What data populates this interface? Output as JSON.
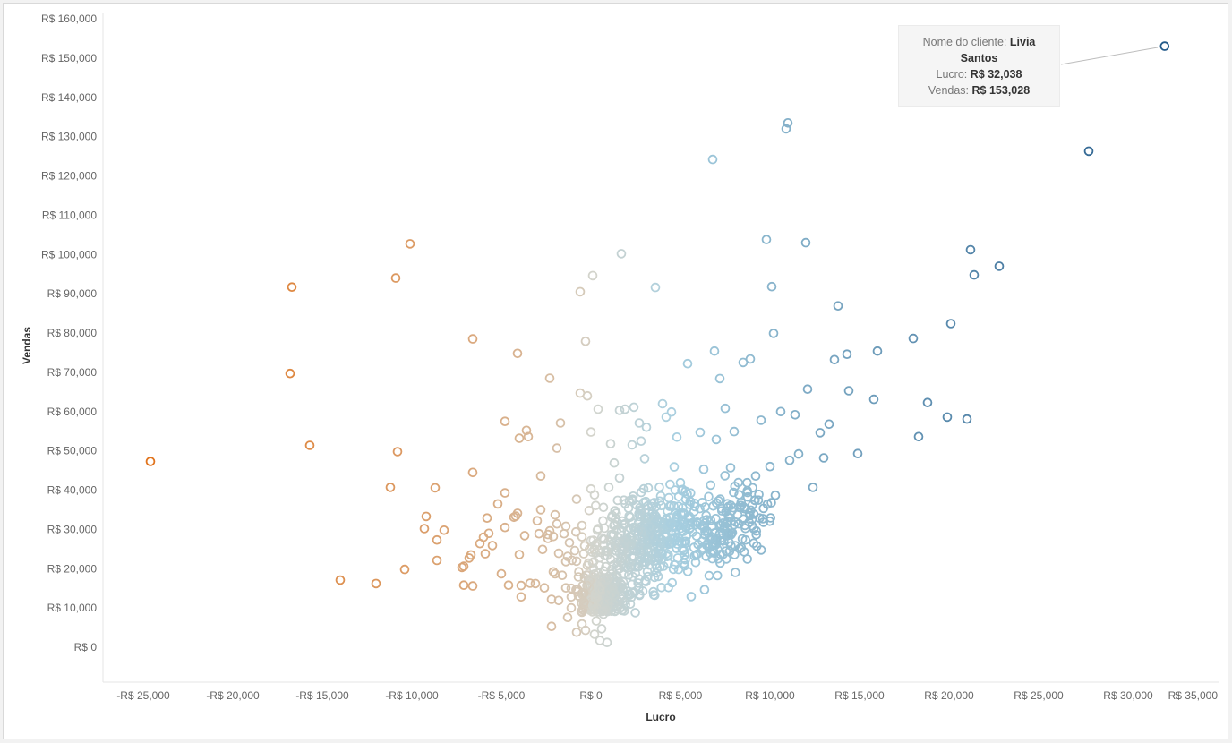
{
  "chart_data": {
    "type": "scatter",
    "xlabel": "Lucro",
    "ylabel": "Vendas",
    "xlim": [
      -27000,
      34800
    ],
    "ylim": [
      -8000,
      162000
    ],
    "x_ticks": [
      -25000,
      -20000,
      -15000,
      -10000,
      -5000,
      0,
      5000,
      10000,
      15000,
      20000,
      25000,
      30000,
      35000
    ],
    "x_tick_labels": [
      "-R$ 25,000",
      "-R$ 20,000",
      "-R$ 15,000",
      "-R$ 10,000",
      "-R$ 5,000",
      "R$ 0",
      "R$ 5,000",
      "R$ 10,000",
      "R$ 15,000",
      "R$ 20,000",
      "R$ 25,000",
      "R$ 30,000",
      "R$ 35,000"
    ],
    "y_ticks": [
      0,
      10000,
      20000,
      30000,
      40000,
      50000,
      60000,
      70000,
      80000,
      90000,
      100000,
      110000,
      120000,
      130000,
      140000,
      150000,
      160000
    ],
    "y_tick_labels": [
      "R$ 0",
      "R$ 10,000",
      "R$ 20,000",
      "R$ 30,000",
      "R$ 40,000",
      "R$ 50,000",
      "R$ 60,000",
      "R$ 70,000",
      "R$ 80,000",
      "R$ 90,000",
      "R$ 100,000",
      "R$ 110,000",
      "R$ 120,000",
      "R$ 130,000",
      "R$ 140,000",
      "R$ 150,000",
      "R$ 160,000"
    ],
    "color_encoding": {
      "field": "Lucro",
      "negative_color": "#e1731c",
      "neutral_color": "#d4d4cc",
      "positive_color": "#a7cfe0",
      "max_color": "#245b8a"
    },
    "marker": "hollow-circle",
    "grid": false,
    "points": [
      [
        -24600,
        47300
      ],
      [
        -16700,
        91700
      ],
      [
        -16800,
        69700
      ],
      [
        -15700,
        51400
      ],
      [
        -14000,
        17100
      ],
      [
        -12000,
        16200
      ],
      [
        -10100,
        102700
      ],
      [
        -10900,
        94000
      ],
      [
        -10800,
        49800
      ],
      [
        -11200,
        40700
      ],
      [
        -10400,
        19800
      ],
      [
        -9200,
        33300
      ],
      [
        -9300,
        30200
      ],
      [
        -8700,
        40600
      ],
      [
        -8600,
        27300
      ],
      [
        -8600,
        22100
      ],
      [
        -8200,
        29800
      ],
      [
        -7200,
        20300
      ],
      [
        -7100,
        20600
      ],
      [
        -7100,
        15800
      ],
      [
        -6800,
        22700
      ],
      [
        -6700,
        23500
      ],
      [
        -6600,
        15600
      ],
      [
        -6600,
        78500
      ],
      [
        -6600,
        44500
      ],
      [
        -6200,
        26400
      ],
      [
        -6000,
        28000
      ],
      [
        -5900,
        23800
      ],
      [
        -5800,
        32900
      ],
      [
        -5700,
        29000
      ],
      [
        -5500,
        25900
      ],
      [
        -5200,
        36500
      ],
      [
        -5000,
        18700
      ],
      [
        -4800,
        30500
      ],
      [
        -4800,
        57500
      ],
      [
        -4800,
        39300
      ],
      [
        -4600,
        15800
      ],
      [
        -4300,
        33100
      ],
      [
        -4200,
        33400
      ],
      [
        -4100,
        34100
      ],
      [
        -4100,
        74800
      ],
      [
        -4000,
        53200
      ],
      [
        -4000,
        23600
      ],
      [
        -3900,
        12800
      ],
      [
        -3900,
        15700
      ],
      [
        -3700,
        28400
      ],
      [
        -3600,
        55200
      ],
      [
        -3500,
        53600
      ],
      [
        -3400,
        16300
      ],
      [
        -3100,
        16200
      ],
      [
        -3000,
        32200
      ],
      [
        -2900,
        28900
      ],
      [
        -2800,
        43600
      ],
      [
        -2800,
        35000
      ],
      [
        -2700,
        24900
      ],
      [
        -2600,
        15100
      ],
      [
        -2400,
        28700
      ],
      [
        -2400,
        27700
      ],
      [
        -2300,
        29600
      ],
      [
        -2300,
        68500
      ],
      [
        -2200,
        5300
      ],
      [
        -2200,
        12200
      ],
      [
        -2100,
        19200
      ],
      [
        -2100,
        28200
      ],
      [
        -2000,
        18700
      ],
      [
        -2000,
        33700
      ],
      [
        -1900,
        50700
      ],
      [
        -1900,
        31400
      ],
      [
        -1800,
        23900
      ],
      [
        -1800,
        11900
      ],
      [
        -1700,
        57100
      ],
      [
        -1600,
        18300
      ],
      [
        -1500,
        28900
      ],
      [
        -1400,
        30800
      ],
      [
        -1400,
        21800
      ],
      [
        -1400,
        15100
      ],
      [
        -1300,
        7600
      ],
      [
        -1300,
        23100
      ],
      [
        -1200,
        26600
      ],
      [
        -1100,
        10000
      ],
      [
        -1100,
        12800
      ],
      [
        -1100,
        15000
      ],
      [
        -900,
        24600
      ],
      [
        -800,
        21900
      ],
      [
        -800,
        3800
      ],
      [
        -800,
        37700
      ],
      [
        -700,
        17900
      ],
      [
        -700,
        13100
      ],
      [
        -600,
        90500
      ],
      [
        -600,
        64700
      ],
      [
        -500,
        31000
      ],
      [
        -500,
        28100
      ],
      [
        -500,
        5900
      ],
      [
        -500,
        8900
      ],
      [
        -400,
        23800
      ],
      [
        -300,
        77900
      ],
      [
        -300,
        4300
      ],
      [
        -200,
        64000
      ],
      [
        -200,
        12300
      ],
      [
        -200,
        20800
      ],
      [
        -100,
        14200
      ],
      [
        -100,
        34800
      ],
      [
        0,
        9700
      ],
      [
        0,
        54800
      ],
      [
        0,
        40300
      ],
      [
        100,
        21500
      ],
      [
        100,
        11300
      ],
      [
        100,
        16900
      ],
      [
        100,
        94600
      ],
      [
        200,
        3300
      ],
      [
        200,
        38800
      ],
      [
        200,
        24700
      ],
      [
        300,
        6700
      ],
      [
        400,
        60600
      ],
      [
        400,
        18900
      ],
      [
        400,
        30200
      ],
      [
        500,
        1700
      ],
      [
        600,
        4700
      ],
      [
        700,
        8400
      ],
      [
        700,
        35600
      ],
      [
        700,
        26000
      ],
      [
        900,
        1200
      ],
      [
        1000,
        40700
      ],
      [
        1100,
        51800
      ],
      [
        1200,
        12700
      ],
      [
        1200,
        33500
      ],
      [
        1300,
        46900
      ],
      [
        1400,
        24500
      ],
      [
        1600,
        60300
      ],
      [
        1600,
        43100
      ],
      [
        1700,
        100200
      ],
      [
        1700,
        29700
      ],
      [
        1800,
        16600
      ],
      [
        1900,
        60600
      ],
      [
        2100,
        35400
      ],
      [
        2200,
        11000
      ],
      [
        2300,
        51500
      ],
      [
        2400,
        61100
      ],
      [
        2500,
        20400
      ],
      [
        2600,
        25900
      ],
      [
        2700,
        57100
      ],
      [
        2800,
        52500
      ],
      [
        2900,
        14300
      ],
      [
        3000,
        48000
      ],
      [
        3100,
        56000
      ],
      [
        3300,
        31200
      ],
      [
        3400,
        22600
      ],
      [
        3600,
        91600
      ],
      [
        3800,
        23900
      ],
      [
        3900,
        38500
      ],
      [
        4000,
        62000
      ],
      [
        4200,
        58600
      ],
      [
        4300,
        27000
      ],
      [
        4500,
        59900
      ],
      [
        4800,
        53500
      ],
      [
        4800,
        33100
      ],
      [
        5000,
        41900
      ],
      [
        5200,
        26900
      ],
      [
        5400,
        72200
      ],
      [
        5600,
        12900
      ],
      [
        5800,
        35800
      ],
      [
        6100,
        54700
      ],
      [
        6300,
        45300
      ],
      [
        6500,
        26400
      ],
      [
        6600,
        18200
      ],
      [
        6800,
        124200
      ],
      [
        6900,
        75400
      ],
      [
        7000,
        52900
      ],
      [
        7200,
        68400
      ],
      [
        7500,
        60800
      ],
      [
        7800,
        45700
      ],
      [
        8000,
        54900
      ],
      [
        8200,
        33700
      ],
      [
        8500,
        72500
      ],
      [
        8900,
        73400
      ],
      [
        9200,
        43600
      ],
      [
        9500,
        57800
      ],
      [
        9800,
        103800
      ],
      [
        10000,
        46000
      ],
      [
        10100,
        91800
      ],
      [
        10200,
        79900
      ],
      [
        10300,
        38700
      ],
      [
        10600,
        60000
      ],
      [
        10900,
        132000
      ],
      [
        11000,
        133500
      ],
      [
        11100,
        47600
      ],
      [
        11400,
        59200
      ],
      [
        11600,
        49200
      ],
      [
        12000,
        103000
      ],
      [
        12100,
        65700
      ],
      [
        12400,
        40700
      ],
      [
        12800,
        54600
      ],
      [
        13000,
        48200
      ],
      [
        13300,
        56800
      ],
      [
        13600,
        73200
      ],
      [
        13800,
        86900
      ],
      [
        14300,
        74600
      ],
      [
        14400,
        65300
      ],
      [
        14900,
        49300
      ],
      [
        15800,
        63100
      ],
      [
        16000,
        75400
      ],
      [
        18000,
        78600
      ],
      [
        18300,
        53600
      ],
      [
        18800,
        62300
      ],
      [
        19900,
        58600
      ],
      [
        20100,
        82400
      ],
      [
        21000,
        58100
      ],
      [
        21200,
        101200
      ],
      [
        21400,
        94800
      ],
      [
        22800,
        97000
      ],
      [
        27800,
        126300
      ],
      [
        32038,
        153028
      ]
    ]
  },
  "tooltip": {
    "customer_label": "Nome do cliente:",
    "customer_value": "Livia Santos",
    "profit_label": "Lucro:",
    "profit_value": "R$ 32,038",
    "sales_label": "Vendas:",
    "sales_value": "R$ 153,028"
  }
}
